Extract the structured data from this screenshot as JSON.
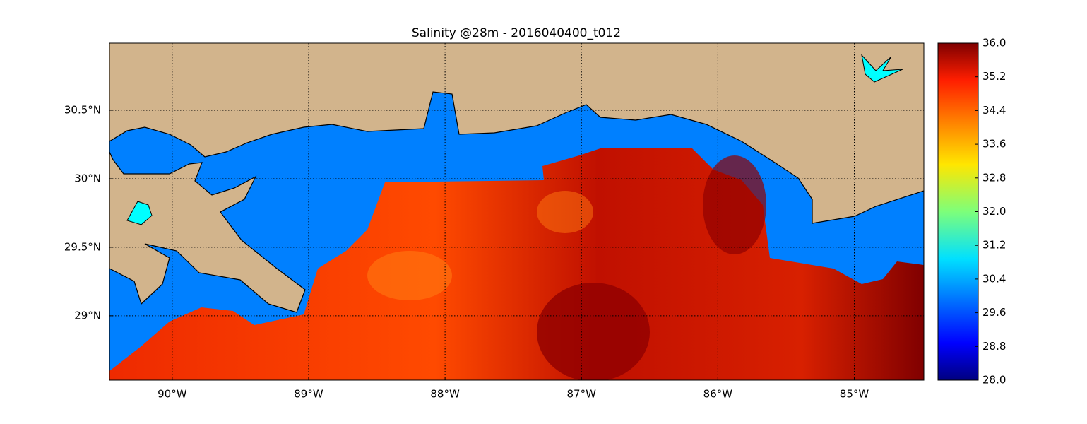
{
  "chart_data": {
    "type": "heatmap",
    "title": "Salinity @28m - 2016040400_t012",
    "xlim": [
      -90.46,
      -84.49
    ],
    "ylim": [
      28.53,
      30.99
    ],
    "xticks": [
      {
        "value": -90,
        "label": "90°W"
      },
      {
        "value": -89,
        "label": "89°W"
      },
      {
        "value": -88,
        "label": "88°W"
      },
      {
        "value": -87,
        "label": "87°W"
      },
      {
        "value": -86,
        "label": "86°W"
      },
      {
        "value": -85,
        "label": "85°W"
      }
    ],
    "yticks": [
      {
        "value": 29,
        "label": "29°N"
      },
      {
        "value": 29.5,
        "label": "29.5°N"
      },
      {
        "value": 30,
        "label": "30°N"
      },
      {
        "value": 30.5,
        "label": "30.5°N"
      }
    ],
    "grid": true,
    "colorbar": {
      "lim": [
        28,
        36
      ],
      "ticks": [
        {
          "value": 28,
          "label": "28.0"
        },
        {
          "value": 28.8,
          "label": "28.8"
        },
        {
          "value": 29.6,
          "label": "29.6"
        },
        {
          "value": 30.4,
          "label": "30.4"
        },
        {
          "value": 31.2,
          "label": "31.2"
        },
        {
          "value": 32,
          "label": "32.0"
        },
        {
          "value": 32.8,
          "label": "32.8"
        },
        {
          "value": 33.6,
          "label": "33.6"
        },
        {
          "value": 34.4,
          "label": "34.4"
        },
        {
          "value": 35.2,
          "label": "35.2"
        },
        {
          "value": 36,
          "label": "36.0"
        }
      ]
    }
  }
}
